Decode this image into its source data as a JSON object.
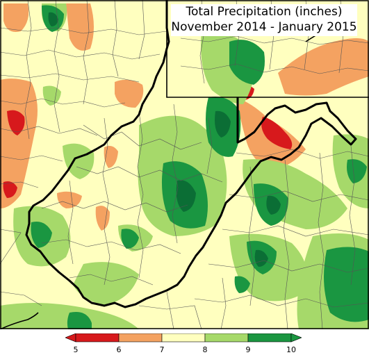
{
  "title": {
    "line1": "Total Precipitation (inches)",
    "line2": "November 2014 - January 2015"
  },
  "legend": {
    "ticks": [
      "5",
      "6",
      "7",
      "8",
      "9",
      "10"
    ],
    "classes": [
      {
        "range": "<5",
        "color": "#d7191c"
      },
      {
        "range": "5-6",
        "color": "#d7191c"
      },
      {
        "range": "6-7",
        "color": "#f4a261"
      },
      {
        "range": "7-8",
        "color": "#ffffbf"
      },
      {
        "range": "8-9",
        "color": "#a6d96a"
      },
      {
        "range": "9-10",
        "color": "#1a9641"
      },
      {
        "range": ">10",
        "color": "#1a9641"
      }
    ]
  },
  "colors": {
    "background": "#ffffbf",
    "red": "#d7191c",
    "orange": "#f4a261",
    "lightgreen": "#a6d96a",
    "green": "#1a9641",
    "darkgreen": "#0b7a3b",
    "boundary": "#000000",
    "county": "#555555"
  }
}
